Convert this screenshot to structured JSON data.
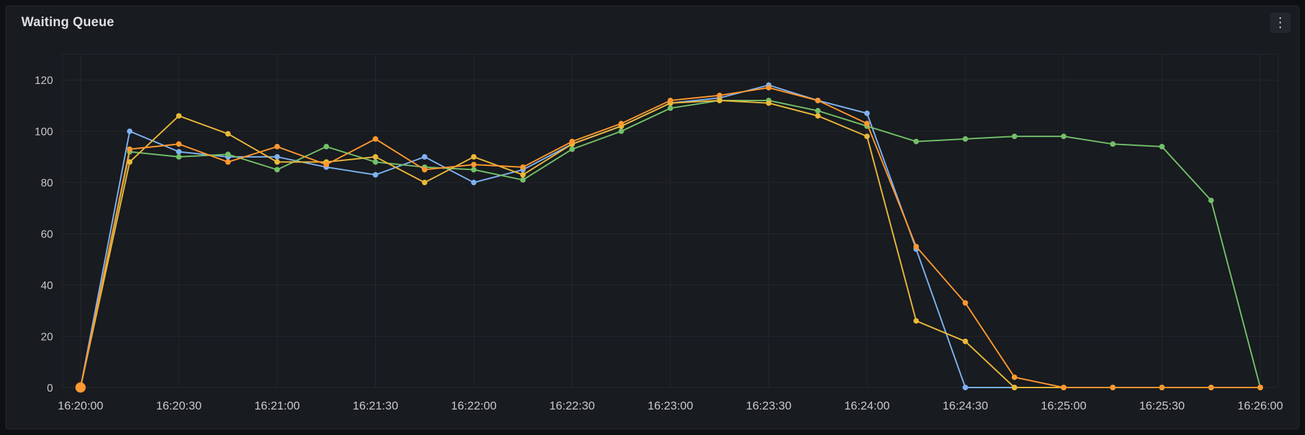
{
  "panel": {
    "title": "Waiting Queue",
    "menu_icon": "⋮"
  },
  "colors": {
    "background": "#0e0f13",
    "panel_background": "#181b1f",
    "panel_border": "#25282e",
    "grid": "#24272e",
    "axis_text": "#c8c9ca",
    "title_text": "#dedfe1"
  },
  "chart_data": {
    "type": "line",
    "title": "Waiting Queue",
    "xlabel": "",
    "ylabel": "",
    "grid": true,
    "legend": "none",
    "ylim": [
      0,
      130
    ],
    "y_ticks": [
      0,
      20,
      40,
      60,
      80,
      100,
      120
    ],
    "x": [
      "16:20:00",
      "16:20:15",
      "16:20:30",
      "16:20:45",
      "16:21:00",
      "16:21:15",
      "16:21:30",
      "16:21:45",
      "16:22:00",
      "16:22:15",
      "16:22:30",
      "16:22:45",
      "16:23:00",
      "16:23:15",
      "16:23:30",
      "16:23:45",
      "16:24:00",
      "16:24:15",
      "16:24:30",
      "16:24:45",
      "16:25:00",
      "16:25:15",
      "16:25:30",
      "16:25:45",
      "16:26:00"
    ],
    "x_tick_labels": [
      "16:20:00",
      "16:20:30",
      "16:21:00",
      "16:21:30",
      "16:22:00",
      "16:22:30",
      "16:23:00",
      "16:23:30",
      "16:24:00",
      "16:24:30",
      "16:25:00",
      "16:25:30",
      "16:26:00"
    ],
    "point_radius": 4,
    "line_width": 2,
    "origin_marker": {
      "series": "orange",
      "radius": 7.5
    },
    "series": [
      {
        "name": "series-blue",
        "color": "#7eb2f2",
        "values": [
          0,
          100,
          92,
          90,
          90,
          86,
          83,
          90,
          80,
          85,
          95,
          102,
          111,
          113,
          118,
          112,
          107,
          54,
          0,
          0,
          0,
          0,
          0,
          0,
          0
        ]
      },
      {
        "name": "series-green",
        "color": "#73bf69",
        "values": [
          0,
          92,
          90,
          91,
          85,
          94,
          88,
          86,
          85,
          81,
          93,
          100,
          109,
          112,
          112,
          108,
          102,
          96,
          97,
          98,
          98,
          95,
          94,
          73,
          0
        ]
      },
      {
        "name": "series-yellow",
        "color": "#eab839",
        "values": [
          0,
          88,
          106,
          99,
          88,
          88,
          90,
          80,
          90,
          83,
          95,
          102,
          111,
          112,
          111,
          106,
          98,
          26,
          18,
          0,
          0,
          0,
          0,
          0,
          0
        ]
      },
      {
        "name": "series-orange",
        "color": "#ff9830",
        "values": [
          0,
          93,
          95,
          88,
          94,
          87,
          97,
          85,
          87,
          86,
          96,
          103,
          112,
          114,
          117,
          112,
          103,
          55,
          33,
          4,
          0,
          0,
          0,
          0,
          0
        ]
      }
    ]
  }
}
